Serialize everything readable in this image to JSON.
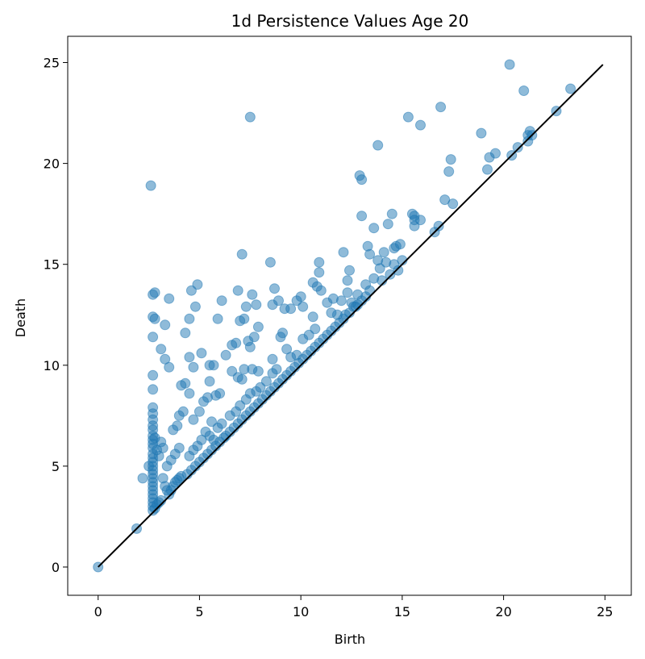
{
  "chart_data": {
    "type": "scatter",
    "title": "1d Persistence Values Age 20",
    "xlabel": "Birth",
    "ylabel": "Death",
    "xlim": [
      -1.5,
      26.3
    ],
    "ylim": [
      -1.4,
      26.3
    ],
    "xticks": [
      0,
      5,
      10,
      15,
      20,
      25
    ],
    "yticks": [
      0,
      5,
      10,
      15,
      20,
      25
    ],
    "grid": false,
    "colors": {
      "points": "#1f77b4",
      "diagonal": "#000000",
      "frame": "#000000"
    },
    "diagonal": {
      "from": [
        0,
        0
      ],
      "to": [
        24.9,
        24.9
      ]
    },
    "points": [
      [
        0,
        0
      ],
      [
        1.9,
        1.9
      ],
      [
        2.2,
        4.4
      ],
      [
        2.5,
        5.0
      ],
      [
        2.6,
        18.9
      ],
      [
        2.7,
        13.5
      ],
      [
        2.8,
        13.6
      ],
      [
        2.7,
        12.4
      ],
      [
        2.8,
        12.3
      ],
      [
        2.7,
        11.4
      ],
      [
        2.7,
        9.5
      ],
      [
        2.7,
        8.8
      ],
      [
        2.7,
        7.9
      ],
      [
        2.7,
        7.6
      ],
      [
        2.7,
        7.3
      ],
      [
        2.7,
        7.0
      ],
      [
        2.7,
        6.8
      ],
      [
        2.7,
        6.5
      ],
      [
        2.7,
        6.3
      ],
      [
        2.7,
        6.1
      ],
      [
        2.7,
        5.9
      ],
      [
        2.7,
        5.6
      ],
      [
        2.7,
        5.4
      ],
      [
        2.7,
        5.2
      ],
      [
        2.7,
        5.0
      ],
      [
        2.7,
        4.8
      ],
      [
        2.7,
        4.6
      ],
      [
        2.7,
        4.4
      ],
      [
        2.7,
        4.2
      ],
      [
        2.7,
        4.0
      ],
      [
        2.7,
        3.8
      ],
      [
        2.7,
        3.6
      ],
      [
        2.7,
        3.4
      ],
      [
        2.7,
        3.2
      ],
      [
        2.7,
        3.0
      ],
      [
        2.7,
        2.8
      ],
      [
        2.8,
        2.9
      ],
      [
        2.9,
        3.1
      ],
      [
        3.0,
        3.2
      ],
      [
        3.1,
        3.3
      ],
      [
        2.8,
        6.4
      ],
      [
        2.9,
        5.8
      ],
      [
        3.0,
        5.5
      ],
      [
        3.1,
        6.2
      ],
      [
        3.2,
        5.9
      ],
      [
        3.3,
        12.0
      ],
      [
        3.1,
        10.8
      ],
      [
        3.3,
        10.3
      ],
      [
        3.5,
        9.9
      ],
      [
        3.5,
        13.3
      ],
      [
        3.2,
        4.4
      ],
      [
        3.3,
        4.0
      ],
      [
        3.4,
        3.8
      ],
      [
        3.5,
        3.6
      ],
      [
        3.6,
        3.8
      ],
      [
        3.7,
        4.0
      ],
      [
        3.8,
        4.2
      ],
      [
        3.9,
        4.3
      ],
      [
        4.0,
        4.4
      ],
      [
        4.1,
        4.5
      ],
      [
        3.4,
        5.0
      ],
      [
        3.6,
        5.3
      ],
      [
        3.8,
        5.6
      ],
      [
        4.0,
        5.9
      ],
      [
        3.7,
        6.8
      ],
      [
        3.9,
        7.0
      ],
      [
        4.0,
        7.5
      ],
      [
        4.2,
        7.7
      ],
      [
        4.1,
        9.0
      ],
      [
        4.3,
        9.1
      ],
      [
        4.3,
        11.6
      ],
      [
        4.5,
        12.3
      ],
      [
        4.6,
        13.7
      ],
      [
        4.8,
        12.9
      ],
      [
        4.9,
        14.0
      ],
      [
        4.5,
        10.4
      ],
      [
        4.7,
        9.9
      ],
      [
        5.1,
        10.6
      ],
      [
        5.5,
        10.0
      ],
      [
        5.7,
        10.0
      ],
      [
        4.5,
        8.6
      ],
      [
        4.7,
        7.3
      ],
      [
        5.0,
        7.7
      ],
      [
        5.2,
        8.2
      ],
      [
        5.4,
        8.4
      ],
      [
        5.5,
        9.2
      ],
      [
        5.8,
        8.5
      ],
      [
        6.0,
        8.6
      ],
      [
        5.9,
        12.3
      ],
      [
        6.1,
        13.2
      ],
      [
        4.4,
        4.6
      ],
      [
        4.6,
        4.8
      ],
      [
        4.8,
        5.0
      ],
      [
        5.0,
        5.2
      ],
      [
        5.2,
        5.4
      ],
      [
        5.4,
        5.6
      ],
      [
        5.6,
        5.8
      ],
      [
        5.8,
        6.0
      ],
      [
        6.0,
        6.2
      ],
      [
        6.2,
        6.4
      ],
      [
        4.5,
        5.5
      ],
      [
        4.7,
        5.8
      ],
      [
        4.9,
        6.0
      ],
      [
        5.1,
        6.3
      ],
      [
        5.3,
        6.7
      ],
      [
        5.5,
        6.5
      ],
      [
        5.7,
        6.3
      ],
      [
        5.6,
        7.2
      ],
      [
        5.9,
        6.9
      ],
      [
        6.1,
        7.1
      ],
      [
        6.3,
        10.5
      ],
      [
        6.6,
        11.0
      ],
      [
        6.8,
        11.1
      ],
      [
        6.9,
        13.7
      ],
      [
        7.1,
        15.5
      ],
      [
        7.0,
        12.2
      ],
      [
        7.2,
        12.3
      ],
      [
        7.3,
        12.9
      ],
      [
        7.6,
        13.5
      ],
      [
        7.8,
        13.0
      ],
      [
        6.6,
        9.7
      ],
      [
        6.9,
        9.4
      ],
      [
        7.1,
        9.3
      ],
      [
        7.2,
        9.8
      ],
      [
        7.5,
        10.9
      ],
      [
        7.7,
        11.4
      ],
      [
        7.9,
        11.9
      ],
      [
        7.4,
        11.2
      ],
      [
        7.6,
        9.8
      ],
      [
        7.9,
        9.7
      ],
      [
        6.3,
        6.5
      ],
      [
        6.5,
        6.7
      ],
      [
        6.7,
        6.9
      ],
      [
        6.9,
        7.1
      ],
      [
        7.1,
        7.3
      ],
      [
        7.3,
        7.5
      ],
      [
        7.5,
        7.7
      ],
      [
        7.7,
        7.9
      ],
      [
        7.9,
        8.1
      ],
      [
        8.1,
        8.3
      ],
      [
        6.5,
        7.5
      ],
      [
        6.8,
        7.7
      ],
      [
        7.0,
        8.0
      ],
      [
        7.3,
        8.3
      ],
      [
        7.5,
        8.6
      ],
      [
        7.8,
        8.7
      ],
      [
        8.0,
        8.9
      ],
      [
        8.3,
        9.2
      ],
      [
        8.6,
        9.6
      ],
      [
        8.8,
        9.8
      ],
      [
        7.5,
        22.3
      ],
      [
        8.5,
        15.1
      ],
      [
        8.7,
        13.8
      ],
      [
        8.6,
        13.0
      ],
      [
        8.9,
        13.2
      ],
      [
        9.2,
        12.8
      ],
      [
        9.5,
        12.8
      ],
      [
        9.8,
        13.2
      ],
      [
        10.0,
        13.4
      ],
      [
        10.1,
        12.9
      ],
      [
        8.6,
        10.3
      ],
      [
        9.0,
        11.4
      ],
      [
        9.1,
        11.6
      ],
      [
        9.3,
        10.8
      ],
      [
        9.5,
        10.4
      ],
      [
        9.8,
        10.5
      ],
      [
        10.1,
        11.3
      ],
      [
        10.4,
        11.5
      ],
      [
        10.6,
        14.1
      ],
      [
        10.8,
        13.9
      ],
      [
        8.3,
        8.5
      ],
      [
        8.5,
        8.7
      ],
      [
        8.7,
        8.9
      ],
      [
        8.9,
        9.1
      ],
      [
        9.1,
        9.3
      ],
      [
        9.3,
        9.5
      ],
      [
        9.5,
        9.7
      ],
      [
        9.7,
        9.9
      ],
      [
        9.9,
        10.1
      ],
      [
        10.1,
        10.3
      ],
      [
        10.3,
        10.5
      ],
      [
        10.5,
        10.7
      ],
      [
        10.7,
        10.9
      ],
      [
        10.9,
        11.1
      ],
      [
        11.1,
        11.3
      ],
      [
        11.3,
        11.5
      ],
      [
        11.5,
        11.7
      ],
      [
        11.7,
        11.9
      ],
      [
        11.9,
        12.1
      ],
      [
        12.1,
        12.3
      ],
      [
        10.6,
        12.4
      ],
      [
        10.7,
        11.8
      ],
      [
        10.9,
        15.1
      ],
      [
        10.9,
        14.6
      ],
      [
        11.0,
        13.7
      ],
      [
        11.3,
        13.1
      ],
      [
        11.5,
        12.6
      ],
      [
        11.6,
        13.3
      ],
      [
        11.8,
        12.5
      ],
      [
        12.0,
        13.2
      ],
      [
        12.1,
        15.6
      ],
      [
        12.3,
        14.2
      ],
      [
        12.4,
        14.7
      ],
      [
        12.3,
        13.6
      ],
      [
        12.5,
        13.1
      ],
      [
        12.7,
        12.9
      ],
      [
        12.8,
        13.5
      ],
      [
        12.9,
        19.4
      ],
      [
        13.0,
        19.2
      ],
      [
        13.0,
        17.4
      ],
      [
        12.2,
        12.5
      ],
      [
        12.4,
        12.6
      ],
      [
        12.6,
        12.9
      ],
      [
        12.8,
        13.0
      ],
      [
        13.0,
        13.2
      ],
      [
        13.2,
        13.4
      ],
      [
        13.3,
        15.9
      ],
      [
        13.4,
        15.5
      ],
      [
        13.6,
        16.8
      ],
      [
        13.8,
        15.2
      ],
      [
        13.2,
        14.0
      ],
      [
        13.4,
        13.7
      ],
      [
        13.6,
        14.3
      ],
      [
        13.9,
        14.8
      ],
      [
        14.0,
        14.2
      ],
      [
        14.1,
        15.6
      ],
      [
        14.2,
        15.1
      ],
      [
        14.3,
        17.0
      ],
      [
        14.5,
        17.5
      ],
      [
        14.6,
        15.8
      ],
      [
        14.4,
        14.5
      ],
      [
        14.6,
        15.0
      ],
      [
        14.8,
        14.7
      ],
      [
        14.9,
        16.0
      ],
      [
        14.7,
        15.9
      ],
      [
        15.0,
        15.2
      ],
      [
        13.8,
        20.9
      ],
      [
        15.3,
        22.3
      ],
      [
        15.9,
        21.9
      ],
      [
        15.5,
        17.5
      ],
      [
        15.6,
        17.4
      ],
      [
        15.6,
        17.2
      ],
      [
        15.6,
        16.9
      ],
      [
        15.9,
        17.2
      ],
      [
        16.6,
        16.6
      ],
      [
        16.8,
        16.9
      ],
      [
        16.9,
        22.8
      ],
      [
        17.1,
        18.2
      ],
      [
        17.3,
        19.6
      ],
      [
        17.4,
        20.2
      ],
      [
        17.5,
        18.0
      ],
      [
        18.9,
        21.5
      ],
      [
        19.2,
        19.7
      ],
      [
        19.3,
        20.3
      ],
      [
        19.6,
        20.5
      ],
      [
        20.3,
        24.9
      ],
      [
        20.4,
        20.4
      ],
      [
        20.7,
        20.8
      ],
      [
        21.0,
        23.6
      ],
      [
        21.2,
        21.4
      ],
      [
        21.3,
        21.6
      ],
      [
        21.4,
        21.4
      ],
      [
        21.2,
        21.1
      ],
      [
        22.6,
        22.6
      ],
      [
        23.3,
        23.7
      ]
    ]
  }
}
